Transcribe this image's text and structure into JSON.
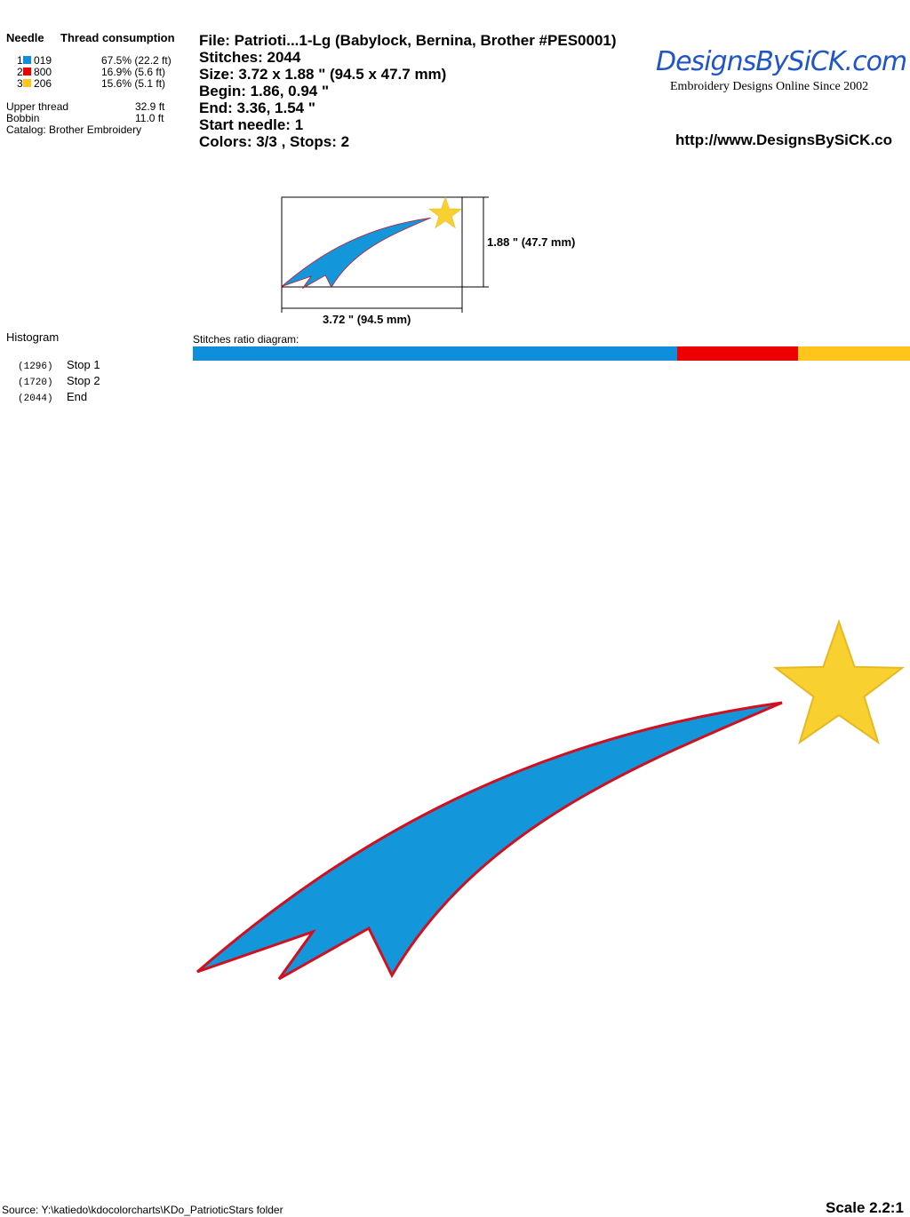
{
  "thread": {
    "needle_header": "Needle",
    "consumption_header": "Thread consumption",
    "rows": [
      {
        "num": "1",
        "code": "019",
        "color": "#0F8FDB",
        "usage": "67.5% (22.2 ft)",
        "ratio": 67.5
      },
      {
        "num": "2",
        "code": "800",
        "color": "#EE0000",
        "usage": "16.9% (5.6 ft)",
        "ratio": 16.9
      },
      {
        "num": "3",
        "code": "206",
        "color": "#FFC51A",
        "usage": "15.6% (5.1 ft)",
        "ratio": 15.6
      }
    ],
    "upper_label": "Upper thread",
    "upper_value": "32.9 ft",
    "bobbin_label": "Bobbin",
    "bobbin_value": "11.0 ft",
    "catalog": "Catalog: Brother Embroidery"
  },
  "info": {
    "file": "File: Patrioti...1-Lg  (Babylock, Bernina, Brother #PES0001)",
    "stitches": "Stitches: 2044",
    "size": "Size: 3.72 x 1.88 \" (94.5 x 47.7 mm)",
    "begin": "Begin: 1.86, 0.94 \"",
    "end": "End: 3.36, 1.54 \"",
    "start_needle": "Start needle: 1",
    "colors": "Colors: 3/3 , Stops: 2"
  },
  "logo": {
    "text": "DesignsBySiCK.com",
    "tagline": "Embroidery Designs Online Since 2002",
    "url": "http://www.DesignsBySiCK.co"
  },
  "preview": {
    "height_label": "1.88 \" (47.7 mm)",
    "width_label": "3.72 \" (94.5 mm)"
  },
  "histogram": {
    "title": "Histogram",
    "stops": [
      {
        "count": "(1296)",
        "label": "Stop 1"
      },
      {
        "count": "(1720)",
        "label": "Stop 2"
      },
      {
        "count": "(2044)",
        "label": "End"
      }
    ]
  },
  "ratio_title": "Stitches ratio diagram:",
  "footer": {
    "source": "Source: Y:\\katiedo\\kdocolorcharts\\KDo_PatrioticStars folder",
    "scale": "Scale 2.2:1"
  }
}
